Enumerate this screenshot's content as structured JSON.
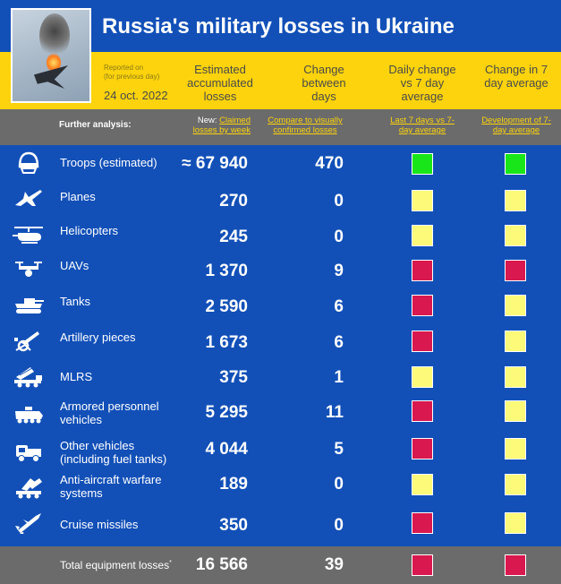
{
  "title": "Russia's military losses in Ukraine",
  "reported_on": "Reported on",
  "reported_note": "(for previous day)",
  "date": "24 oct. 2022",
  "columns": {
    "accumulated": "Estimated accumulated losses",
    "change_between_days": "Change between days",
    "daily_change_vs_7day": "Daily change vs 7 day average",
    "change_7day": "Change in 7 day average"
  },
  "analysis": {
    "label": "Further analysis:",
    "new_prefix": "New:",
    "link1": "Claimed losses by week",
    "link2": "Compare to visually confirmed losses",
    "link3": "Last 7 days vs 7-day average",
    "link4": "Development of 7-day average"
  },
  "colors": {
    "green": "#19e619",
    "yellow": "#fdfa79",
    "red": "#d8184e"
  },
  "rows": [
    {
      "icon": "helmet-icon",
      "name": "Troops (estimated)",
      "value": "≈ 67 940",
      "change": "470",
      "daily": "green",
      "weekly": "green"
    },
    {
      "icon": "jet-icon",
      "name": "Planes",
      "value": "270",
      "change": "0",
      "daily": "yellow",
      "weekly": "yellow"
    },
    {
      "icon": "helicopter-icon",
      "name": "Helicopters",
      "value": "245",
      "change": "0",
      "daily": "yellow",
      "weekly": "yellow"
    },
    {
      "icon": "drone-icon",
      "name": "UAVs",
      "value": "1 370",
      "change": "9",
      "daily": "red",
      "weekly": "red"
    },
    {
      "icon": "tank-icon",
      "name": "Tanks",
      "value": "2 590",
      "change": "6",
      "daily": "red",
      "weekly": "yellow"
    },
    {
      "icon": "artillery-icon",
      "name": "Artillery pieces",
      "value": "1 673",
      "change": "6",
      "daily": "red",
      "weekly": "yellow"
    },
    {
      "icon": "mlrs-icon",
      "name": "MLRS",
      "value": "375",
      "change": "1",
      "daily": "yellow",
      "weekly": "yellow"
    },
    {
      "icon": "apc-icon",
      "name": "Armored personnel vehicles",
      "value": "5 295",
      "change": "11",
      "daily": "red",
      "weekly": "yellow"
    },
    {
      "icon": "truck-icon",
      "name": "Other vehicles (including fuel tanks)",
      "value": "4 044",
      "change": "5",
      "daily": "red",
      "weekly": "yellow"
    },
    {
      "icon": "anti-aircraft-icon",
      "name": "Anti-aircraft warfare systems",
      "value": "189",
      "change": "0",
      "daily": "yellow",
      "weekly": "yellow"
    },
    {
      "icon": "missile-icon",
      "name": "Cruise missiles",
      "value": "350",
      "change": "0",
      "daily": "red",
      "weekly": "yellow"
    }
  ],
  "total": {
    "name": "Total equipment losses",
    "star": "*",
    "value": "16 566",
    "change": "39",
    "daily": "red",
    "weekly": "red"
  }
}
